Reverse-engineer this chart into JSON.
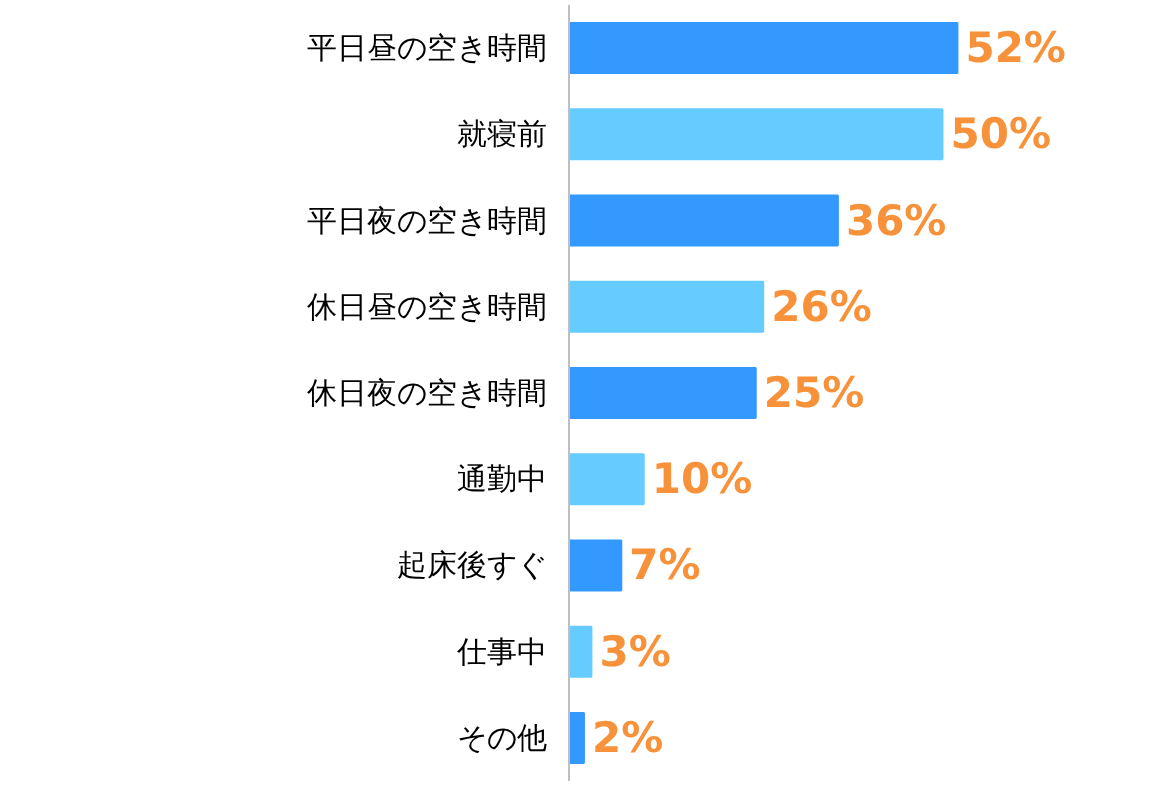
{
  "chart_data": {
    "type": "bar",
    "orientation": "horizontal",
    "categories": [
      "平日昼の空き時間",
      "就寝前",
      "平日夜の空き時間",
      "休日昼の空き時間",
      "休日夜の空き時間",
      "通勤中",
      "起床後すぐ",
      "仕事中",
      "その他"
    ],
    "values": [
      52,
      50,
      36,
      26,
      25,
      10,
      7,
      3,
      2
    ],
    "colors": [
      "#3399ff",
      "#66ccff",
      "#3399ff",
      "#66ccff",
      "#3399ff",
      "#66ccff",
      "#3399ff",
      "#66ccff",
      "#3399ff"
    ],
    "value_labels": [
      "52%",
      "50%",
      "36%",
      "26%",
      "25%",
      "10%",
      "7%",
      "3%",
      "2%"
    ],
    "grid": false
  }
}
